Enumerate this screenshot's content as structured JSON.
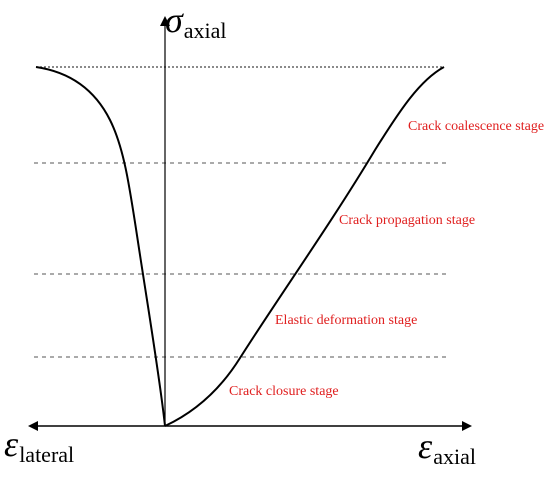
{
  "axes": {
    "vertical_symbol": "σ",
    "vertical_subscript": "axial",
    "left_symbol": "ε",
    "left_subscript": "lateral",
    "right_symbol": "ε",
    "right_subscript": "axial"
  },
  "stages": [
    {
      "label": "Crack coalescence stage"
    },
    {
      "label": "Crack propagation stage"
    },
    {
      "label": "Elastic deformation stage"
    },
    {
      "label": "Crack closure stage"
    }
  ],
  "colors": {
    "stage_label": "#e02020",
    "curve": "#000000",
    "threshold_line": "#555555",
    "axis": "#000000"
  }
}
